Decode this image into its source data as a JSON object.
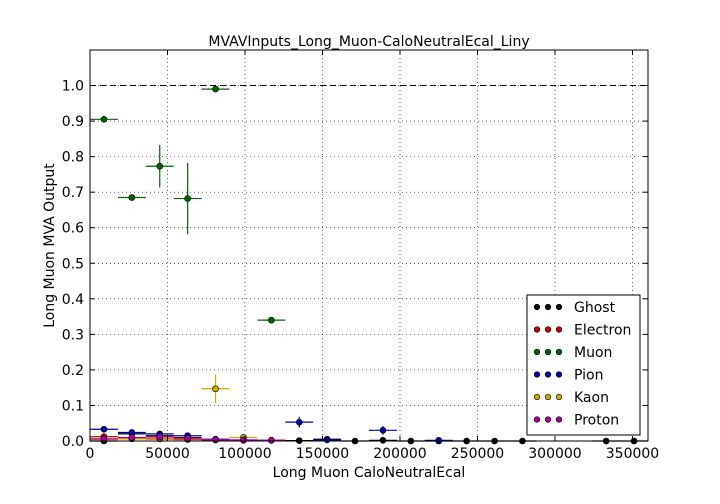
{
  "chart_data": {
    "type": "scatter",
    "title": "MVAVInputs_Long_Muon-CaloNeutralEcal_Liny",
    "xlabel": "Long Muon CaloNeutralEcal",
    "ylabel": "Long Muon MVA Output",
    "xlim": [
      0,
      360000
    ],
    "ylim": [
      0,
      1.1
    ],
    "x_ticks": [
      0,
      50000,
      100000,
      150000,
      200000,
      250000,
      300000,
      350000
    ],
    "x_tick_labels": [
      "0",
      "50000",
      "100000",
      "150000",
      "200000",
      "250000",
      "300000",
      "350000"
    ],
    "y_ticks": [
      0.0,
      0.1,
      0.2,
      0.3,
      0.4,
      0.5,
      0.6,
      0.7,
      0.8,
      0.9,
      1.0
    ],
    "y_tick_labels": [
      "0.0",
      "0.1",
      "0.2",
      "0.3",
      "0.4",
      "0.5",
      "0.6",
      "0.7",
      "0.8",
      "0.9",
      "1.0"
    ],
    "reference_line": {
      "y": 1.0,
      "style": "dashed"
    },
    "grid": true,
    "legend_position": "lower right",
    "series": [
      {
        "name": "Ghost",
        "color": "#000000",
        "points": [
          [
            9000,
            0.0,
            9000,
            0.003
          ],
          [
            27000,
            0.02,
            9000,
            0.005
          ],
          [
            45000,
            0.015,
            9000,
            0.004
          ],
          [
            63000,
            0.01,
            9000,
            0.004
          ],
          [
            81000,
            0.003,
            9000,
            0.002
          ],
          [
            99000,
            0.003,
            9000,
            0.002
          ],
          [
            117000,
            0.002,
            9000,
            0.002
          ],
          [
            135000,
            0.001,
            9000,
            0.001
          ],
          [
            153000,
            0.005,
            9000,
            0.002
          ],
          [
            171000,
            0.0,
            9000,
            0.001
          ],
          [
            189000,
            0.002,
            9000,
            0.001
          ],
          [
            207000,
            0.0,
            9000,
            0.001
          ],
          [
            225000,
            0.0,
            9000,
            0.001
          ],
          [
            243000,
            0.0,
            9000,
            0.001
          ],
          [
            261000,
            0.0,
            9000,
            0.001
          ],
          [
            279000,
            0.0,
            9000,
            0.001
          ],
          [
            333000,
            0.0,
            9000,
            0.001
          ],
          [
            351000,
            0.0,
            9000,
            0.001
          ]
        ]
      },
      {
        "name": "Electron",
        "color": "#cc0000",
        "points": [
          [
            9000,
            0.012,
            9000,
            0.002
          ],
          [
            27000,
            0.008,
            9000,
            0.002
          ],
          [
            45000,
            0.006,
            9000,
            0.002
          ],
          [
            63000,
            0.004,
            9000,
            0.002
          ],
          [
            81000,
            0.003,
            9000,
            0.002
          ],
          [
            99000,
            0.002,
            9000,
            0.002
          ],
          [
            117000,
            0.002,
            9000,
            0.002
          ]
        ]
      },
      {
        "name": "Muon",
        "color": "#006400",
        "points": [
          [
            9000,
            0.905,
            9000,
            0.004
          ],
          [
            27000,
            0.685,
            9000,
            0.008
          ],
          [
            45000,
            0.773,
            9000,
            0.06
          ],
          [
            63000,
            0.682,
            9000,
            0.1
          ],
          [
            81000,
            0.99,
            9000,
            0.005
          ],
          [
            117000,
            0.34,
            9000,
            0.005
          ]
        ]
      },
      {
        "name": "Pion",
        "color": "#0000aa",
        "points": [
          [
            9000,
            0.033,
            9000,
            0.004
          ],
          [
            27000,
            0.024,
            9000,
            0.003
          ],
          [
            45000,
            0.02,
            9000,
            0.004
          ],
          [
            63000,
            0.015,
            9000,
            0.004
          ],
          [
            81000,
            0.005,
            9000,
            0.003
          ],
          [
            135000,
            0.053,
            9000,
            0.015
          ],
          [
            153000,
            0.003,
            9000,
            0.003
          ],
          [
            189000,
            0.03,
            9000,
            0.012
          ],
          [
            225000,
            0.002,
            9000,
            0.002
          ]
        ]
      },
      {
        "name": "Kaon",
        "color": "#ccaa00",
        "points": [
          [
            9000,
            0.004,
            9000,
            0.002
          ],
          [
            27000,
            0.006,
            9000,
            0.002
          ],
          [
            45000,
            0.008,
            9000,
            0.003
          ],
          [
            63000,
            0.006,
            9000,
            0.003
          ],
          [
            81000,
            0.147,
            9000,
            0.04
          ],
          [
            99000,
            0.01,
            9000,
            0.005
          ]
        ]
      },
      {
        "name": "Proton",
        "color": "#aa00aa",
        "points": [
          [
            9000,
            0.006,
            9000,
            0.002
          ],
          [
            27000,
            0.01,
            9000,
            0.002
          ],
          [
            45000,
            0.012,
            9000,
            0.003
          ],
          [
            63000,
            0.008,
            9000,
            0.003
          ],
          [
            81000,
            0.004,
            9000,
            0.002
          ],
          [
            99000,
            0.003,
            9000,
            0.002
          ],
          [
            117000,
            0.002,
            9000,
            0.002
          ]
        ]
      }
    ],
    "point_format": "[x, y, x_error, y_error]"
  }
}
